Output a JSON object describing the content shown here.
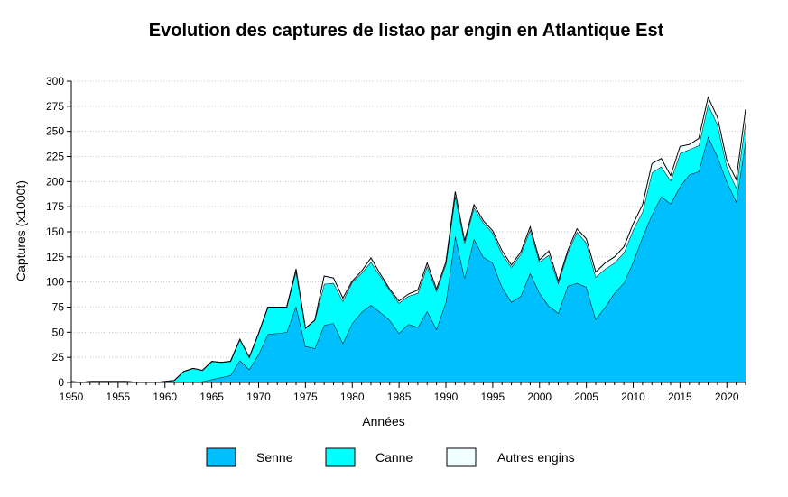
{
  "chart_data": {
    "type": "area",
    "stacked": true,
    "title": "Evolution des captures de listao par engin en Atlantique Est",
    "xlabel": "Années",
    "ylabel": "Captures (x1000t)",
    "xlim": [
      1950,
      2022
    ],
    "ylim": [
      0,
      300
    ],
    "x_ticks": [
      "1950",
      "1955",
      "1960",
      "1965",
      "1970",
      "1975",
      "1980",
      "1985",
      "1990",
      "1995",
      "2000",
      "2005",
      "2010",
      "2015",
      "2020"
    ],
    "y_ticks": [
      "0",
      "25",
      "50",
      "75",
      "100",
      "125",
      "150",
      "175",
      "200",
      "225",
      "250",
      "275",
      "300"
    ],
    "grid": "horizontal dotted",
    "legend_position": "bottom",
    "x": [
      1950,
      1951,
      1952,
      1953,
      1954,
      1955,
      1956,
      1957,
      1958,
      1959,
      1960,
      1961,
      1962,
      1963,
      1964,
      1965,
      1966,
      1967,
      1968,
      1969,
      1970,
      1971,
      1972,
      1973,
      1974,
      1975,
      1976,
      1977,
      1978,
      1979,
      1980,
      1981,
      1982,
      1983,
      1984,
      1985,
      1986,
      1987,
      1988,
      1989,
      1990,
      1991,
      1992,
      1993,
      1994,
      1995,
      1996,
      1997,
      1998,
      1999,
      2000,
      2001,
      2002,
      2003,
      2004,
      2005,
      2006,
      2007,
      2008,
      2009,
      2010,
      2011,
      2012,
      2013,
      2014,
      2015,
      2016,
      2017,
      2018,
      2019,
      2020,
      2021,
      2022
    ],
    "series": [
      {
        "name": "Senne",
        "color": "#00bfff",
        "values": [
          0,
          0,
          0,
          0,
          0,
          0,
          0,
          0,
          0,
          0,
          0,
          0,
          0,
          0,
          1,
          3,
          5,
          7,
          22,
          13,
          28,
          48,
          49,
          50,
          76,
          36,
          34,
          57,
          59,
          39,
          59,
          70,
          77,
          70,
          62,
          49,
          58,
          55,
          71,
          53,
          80,
          146,
          104,
          143,
          125,
          119,
          95,
          80,
          86,
          109,
          89,
          76,
          69,
          96,
          99,
          95,
          63,
          75,
          89,
          99,
          120,
          145,
          167,
          185,
          178,
          195,
          207,
          210,
          245,
          225,
          200,
          180,
          240
        ]
      },
      {
        "name": "Canne",
        "color": "#00ffff",
        "values": [
          1,
          0,
          1,
          1,
          1,
          1,
          1,
          0,
          0,
          0,
          1,
          2,
          11,
          14,
          11,
          18,
          15,
          14,
          21,
          12,
          21,
          27,
          26,
          25,
          35,
          18,
          28,
          41,
          40,
          42,
          41,
          39,
          43,
          36,
          30,
          30,
          28,
          34,
          45,
          38,
          38,
          40,
          35,
          31,
          34,
          30,
          33,
          35,
          42,
          43,
          31,
          51,
          30,
          33,
          51,
          44,
          42,
          38,
          30,
          30,
          32,
          25,
          42,
          30,
          23,
          33,
          25,
          26,
          32,
          32,
          15,
          14,
          20
        ]
      },
      {
        "name": "Autres engins",
        "color": "#f0ffff",
        "values": [
          0,
          0,
          0,
          0,
          0,
          0,
          0,
          0,
          0,
          0,
          0,
          0,
          0,
          0,
          0,
          0,
          0,
          0,
          0,
          0,
          0,
          0,
          0,
          0,
          2,
          0,
          0,
          8,
          5,
          3,
          1,
          2,
          4,
          2,
          1,
          2,
          2,
          3,
          3,
          2,
          2,
          4,
          2,
          3,
          2,
          2,
          3,
          2,
          2,
          3,
          2,
          4,
          2,
          2,
          3,
          4,
          5,
          6,
          6,
          6,
          6,
          7,
          9,
          8,
          5,
          7,
          5,
          7,
          7,
          7,
          6,
          8,
          12
        ]
      }
    ]
  }
}
